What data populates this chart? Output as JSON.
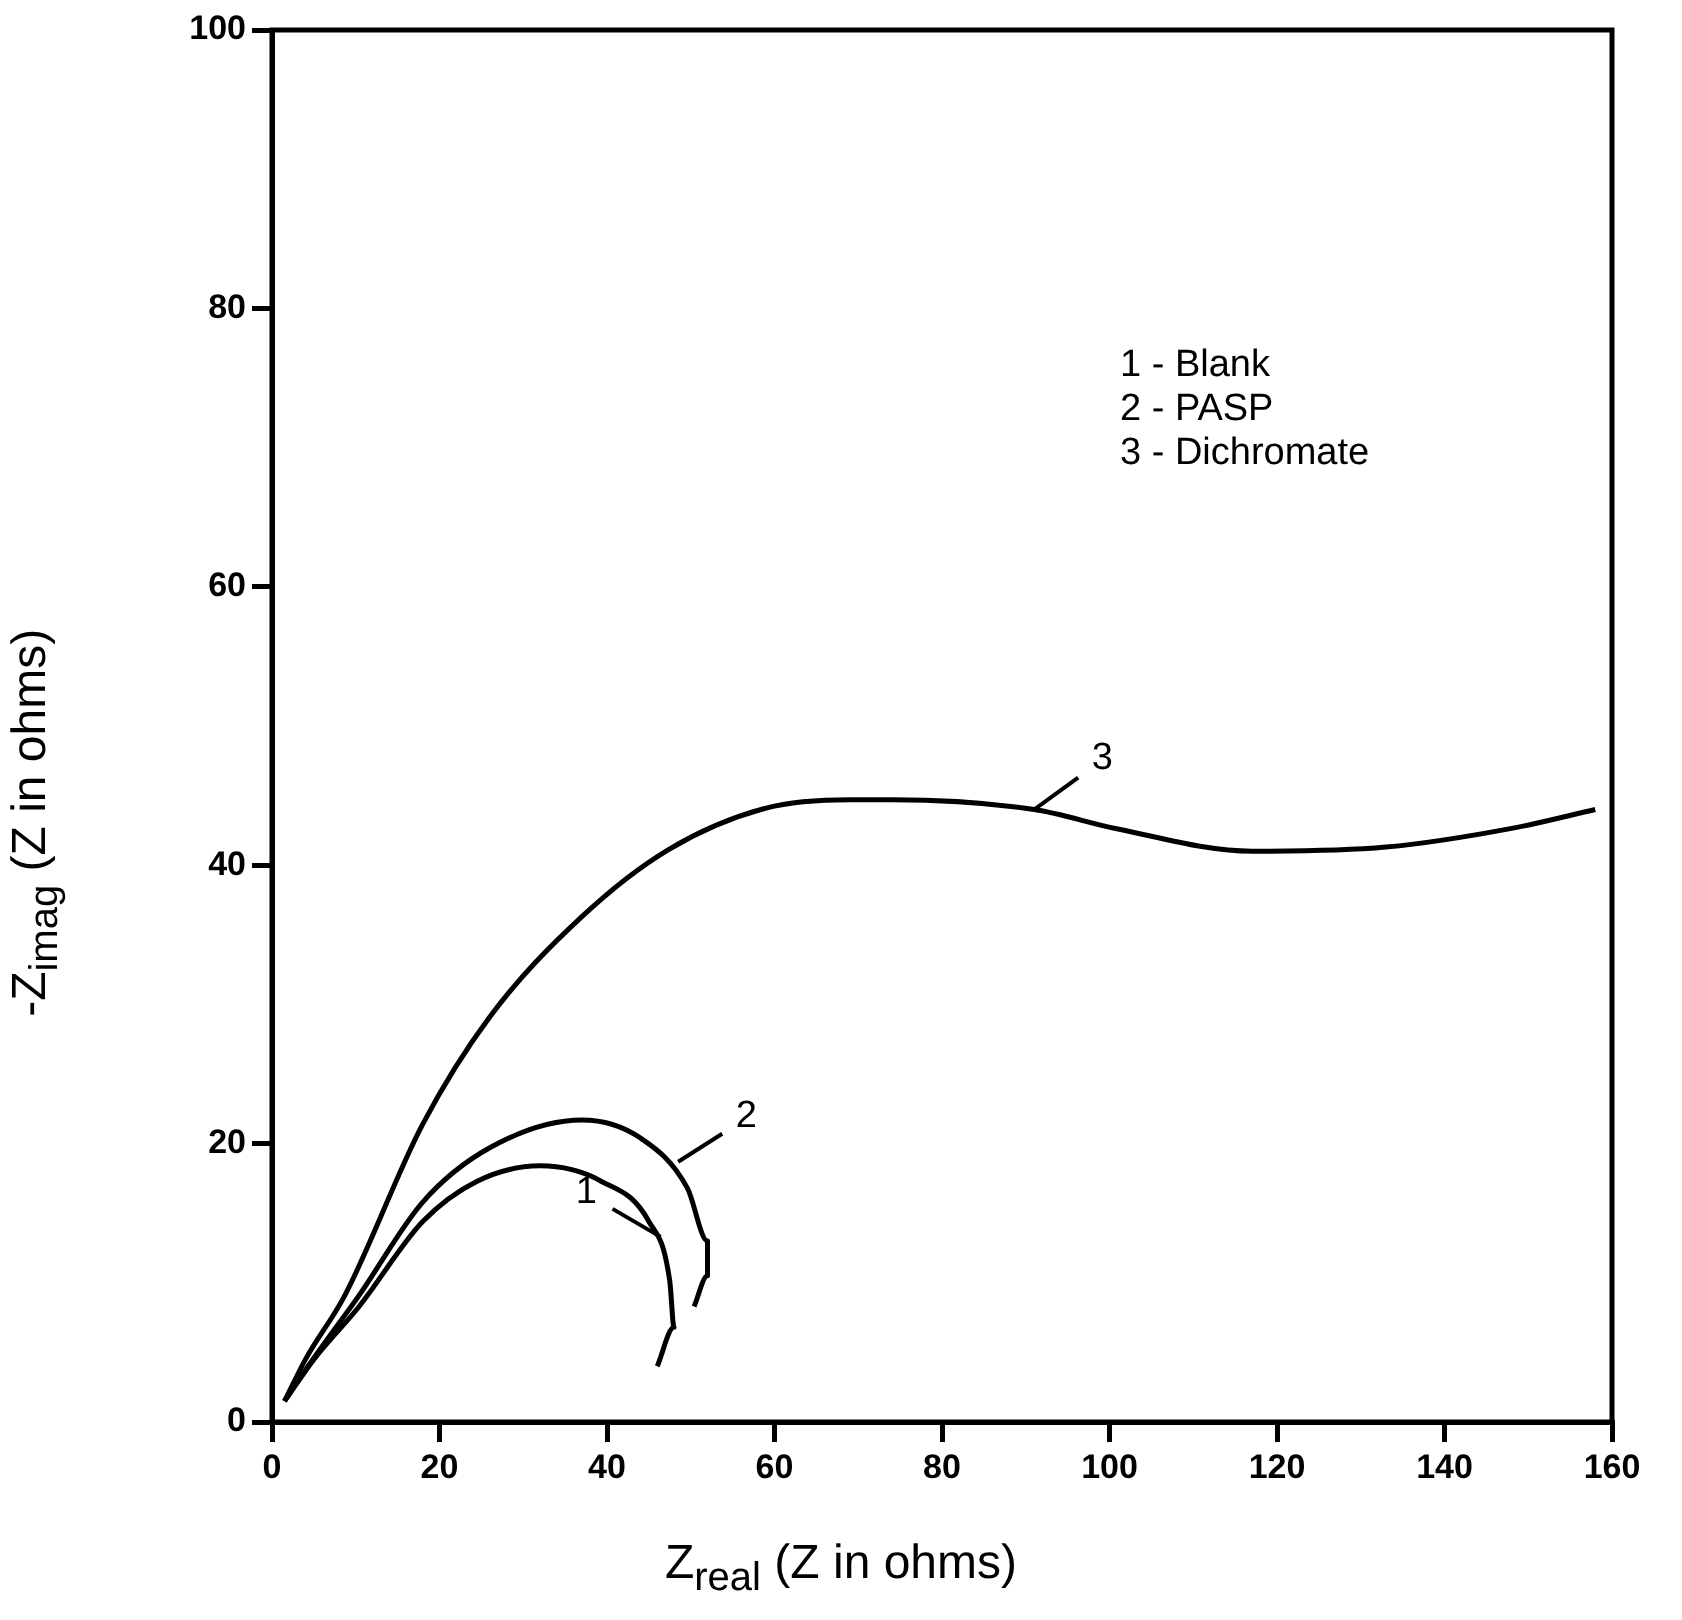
{
  "chart_data": {
    "type": "line",
    "xlabel": "Z$_{real}$ (Z in ohms)",
    "ylabel": "-Z$_{imag}$ (Z in ohms)",
    "xlim": [
      0,
      160
    ],
    "xticks": [
      0,
      20,
      40,
      60,
      80,
      100,
      120,
      140,
      160
    ],
    "ylim": [
      0,
      100
    ],
    "yticks": [
      0,
      20,
      40,
      60,
      80,
      100
    ],
    "grid": false,
    "legend": false,
    "marker": "none",
    "line_style": "solid",
    "series": [
      {
        "color": "#000000",
        "x": [
          1.5,
          5,
          10.4,
          18,
          24.5,
          32,
          39.3,
          45,
          47.5,
          48,
          46
        ],
        "values": [
          1.5,
          4.5,
          8.3,
          14.4,
          17.3,
          18.4,
          17.3,
          14.4,
          10.1,
          6.8,
          4
        ]
      },
      {
        "color": "#000000",
        "x": [
          1.5,
          5,
          10.4,
          18,
          26,
          37,
          44,
          49.6,
          52,
          52,
          50.4
        ],
        "values": [
          1.5,
          4.6,
          9.1,
          15.8,
          19.7,
          21.7,
          20.4,
          16.8,
          13,
          10.5,
          8.3
        ]
      },
      {
        "color": "#000000",
        "x": [
          1.5,
          4,
          8.7,
          18,
          26,
          37,
          47.3,
          59,
          69,
          74,
          91,
          101,
          117,
          133,
          148.5,
          158
        ],
        "values": [
          1.5,
          4.5,
          9.1,
          21.4,
          29.1,
          36.3,
          41.1,
          44.1,
          44.7,
          44.7,
          44,
          42.6,
          41,
          41.3,
          42.7,
          44
        ]
      }
    ],
    "annotations": [
      {
        "text": "1",
        "x": 46.4,
        "y": 13.3
      },
      {
        "text": "2",
        "x": 48.5,
        "y": 18.7
      },
      {
        "text": "3",
        "x": 91,
        "y": 44
      },
      "1 - Blank",
      "2 - PASP",
      "3 - Dichromate"
    ]
  }
}
